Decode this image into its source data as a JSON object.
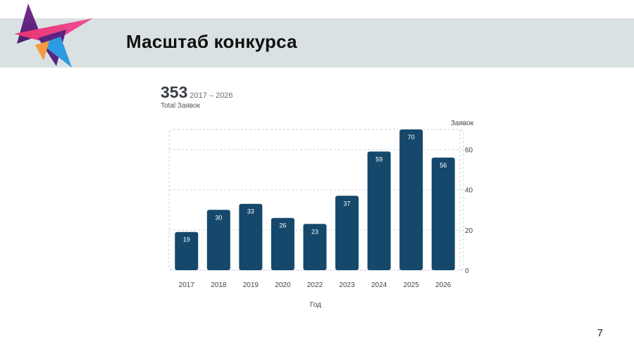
{
  "slide": {
    "title": "Масштаб конкурса",
    "page_number": "7"
  },
  "summary": {
    "total": "353",
    "range": "2017 – 2026",
    "label": "Total Заявок"
  },
  "colors": {
    "bar": "#15486b",
    "header_band": "#d9e1e2",
    "grid": "#c9d3dc"
  },
  "logo": {
    "icon": "star-logo-icon"
  },
  "chart_data": {
    "type": "bar",
    "categories": [
      "2017",
      "2018",
      "2019",
      "2020",
      "2022",
      "2023",
      "2024",
      "2025",
      "2026"
    ],
    "values": [
      19,
      30,
      33,
      26,
      23,
      37,
      59,
      70,
      56
    ],
    "xlabel": "Год",
    "ylabel": "Заявок",
    "ylim": [
      0,
      70
    ],
    "yticks": [
      0,
      20,
      40,
      60
    ],
    "grid": true,
    "y_axis_side": "right"
  }
}
